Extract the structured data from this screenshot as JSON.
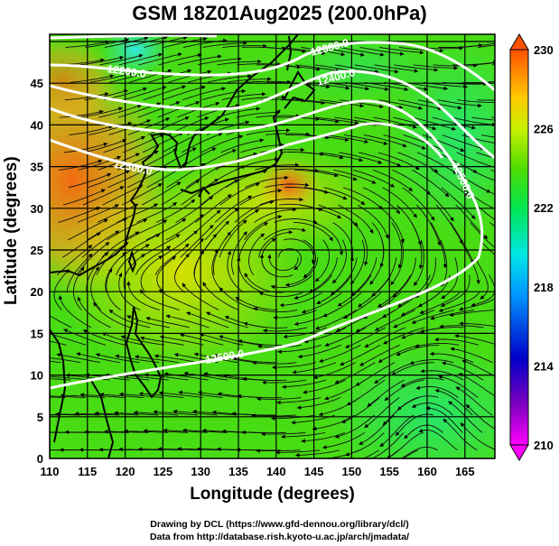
{
  "title": "GSM 18Z01Aug2025 (200.0hPa)",
  "xlabel": "Longitude (degrees)",
  "ylabel": "Latitude  (degrees)",
  "credits": [
    "Drawing by DCL (https://www.gfd-dennou.org/library/dcl/)",
    "Data from http://database.rish.kyoto-u.ac.jp/arch/jmadata/"
  ],
  "map": {
    "lon_range": [
      110,
      169
    ],
    "lat_range": [
      0,
      51
    ],
    "x_ticks": [
      "110",
      "115",
      "120",
      "125",
      "130",
      "135",
      "140",
      "145",
      "150",
      "155",
      "160",
      "165"
    ],
    "y_ticks": [
      "0",
      "5",
      "10",
      "15",
      "20",
      "25",
      "30",
      "35",
      "40",
      "45"
    ],
    "contour_labels": [
      "12200.0",
      "12300.0",
      "12400.0",
      "12500.0",
      "12500.0",
      "12500.0"
    ]
  },
  "colorbar": {
    "range": [
      210,
      230
    ],
    "tick_labels": [
      "230",
      "226",
      "222",
      "218",
      "214",
      "210"
    ],
    "colors": [
      "#ff00ff",
      "#0000c8",
      "#0096ff",
      "#00e6e6",
      "#00e650",
      "#50dc00",
      "#c8f000",
      "#ffc800",
      "#ff5000"
    ]
  }
}
